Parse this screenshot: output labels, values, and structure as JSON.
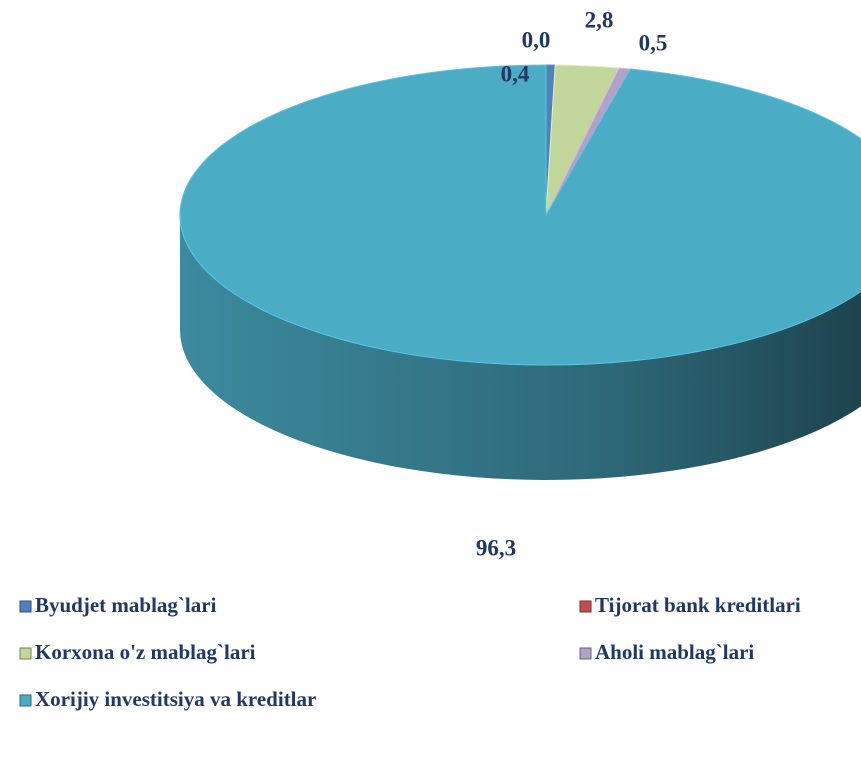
{
  "chart_data": {
    "type": "pie3d",
    "categories": [
      "Byudjet mablag`lari",
      "Tijorat bank kreditlari",
      "Korxona o'z mablag`lari",
      "Aholi mablag`lari",
      "Xorijiy investitsiya va kreditlar"
    ],
    "values": [
      0.4,
      0.0,
      2.8,
      0.5,
      96.3
    ],
    "value_labels": [
      "0,4",
      "0,0",
      "2,8",
      "0,5",
      "96,3"
    ],
    "colors": [
      "#4f81bd",
      "#c0504d",
      "#c3d69b",
      "#b3a2c7",
      "#4bacc6"
    ]
  }
}
